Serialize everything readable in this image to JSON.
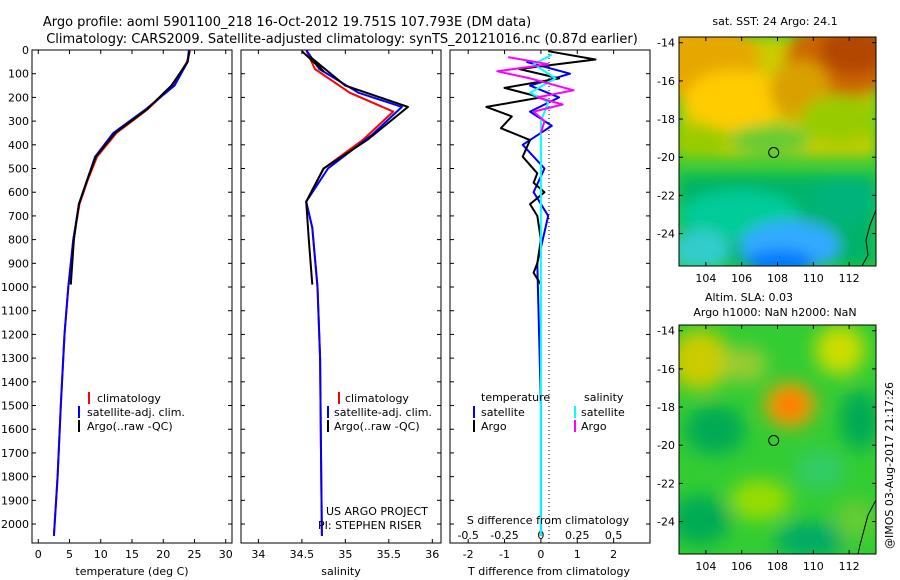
{
  "header": {
    "title_line1": "Argo profile: aoml 5901100_218 16-Oct-2012 19.751S 107.793E (DM data)",
    "title_line2": "Climatology: CARS2009. Satellite-adjusted climatology: synTS_20121016.nc (0.87d earlier)"
  },
  "colors": {
    "climatology": "#ff0000",
    "satellite": "#0000ff",
    "argo": "#000000",
    "salinity_satellite": "#00ffff",
    "salinity_argo": "#ff00ff"
  },
  "legend": {
    "climatology": "climatology",
    "satellite_adj": "satellite-adj. clim.",
    "argo_raw": "Argo(..raw -QC)",
    "temperature_head": "temperature",
    "salinity_head": "salinity",
    "satellite": "satellite",
    "argo": "Argo"
  },
  "credits": {
    "project": "US ARGO PROJECT",
    "pi": "PI: STEPHEN RISER",
    "stamp": "@IMOS 03-Aug-2017 21:17:26"
  },
  "chart_data": [
    {
      "type": "line",
      "id": "temperature",
      "xlabel": "temperature (deg C)",
      "ylabel": "",
      "xlim": [
        -1,
        31
      ],
      "ylim": [
        2080,
        0
      ],
      "xticks": [
        0,
        5,
        10,
        15,
        20,
        25,
        30
      ],
      "yticks": [
        0,
        100,
        200,
        300,
        400,
        500,
        600,
        700,
        800,
        900,
        1000,
        1100,
        1200,
        1300,
        1400,
        1500,
        1600,
        1700,
        1800,
        1900,
        2000
      ],
      "series": [
        {
          "name": "climatology",
          "color": "#ff0000",
          "x": [
            24.3,
            23.8,
            21.5,
            17.5,
            12.5,
            9.4,
            7.9,
            6.6,
            5.6,
            4.8,
            4.2,
            3.6,
            3.1,
            2.5
          ],
          "y": [
            0,
            50,
            150,
            250,
            350,
            450,
            550,
            650,
            800,
            1000,
            1200,
            1500,
            1800,
            2050
          ]
        },
        {
          "name": "satellite-adj. clim.",
          "color": "#0000ff",
          "x": [
            24.1,
            23.9,
            21.8,
            17.2,
            12.0,
            9.1,
            7.8,
            6.5,
            5.6,
            4.8,
            4.2,
            3.6,
            3.1,
            2.5
          ],
          "y": [
            0,
            50,
            150,
            250,
            350,
            450,
            550,
            650,
            800,
            1000,
            1200,
            1500,
            1800,
            2050
          ]
        },
        {
          "name": "Argo(..raw -QC)",
          "color": "#000000",
          "x": [
            24.2,
            23.9,
            21.3,
            17.4,
            12.3,
            9.2,
            7.8,
            6.5,
            5.7,
            5.2
          ],
          "y": [
            5,
            50,
            150,
            250,
            350,
            450,
            550,
            650,
            800,
            990
          ]
        }
      ]
    },
    {
      "type": "line",
      "id": "salinity",
      "xlabel": "salinity",
      "ylabel": "",
      "xlim": [
        33.8,
        36.1
      ],
      "ylim": [
        2080,
        0
      ],
      "xticks": [
        34,
        34.5,
        35,
        35.5,
        36
      ],
      "series": [
        {
          "name": "climatology",
          "color": "#ff0000",
          "x": [
            34.55,
            34.65,
            35.05,
            35.55,
            35.2,
            34.75,
            34.55,
            34.62,
            34.68,
            34.71,
            34.72,
            34.73
          ],
          "y": [
            0,
            80,
            180,
            260,
            380,
            500,
            640,
            750,
            1000,
            1300,
            1700,
            2050
          ]
        },
        {
          "name": "satellite-adj. clim.",
          "color": "#0000ff",
          "x": [
            34.55,
            34.7,
            35.15,
            35.65,
            35.3,
            34.8,
            34.55,
            34.62,
            34.68,
            34.71,
            34.72,
            34.73
          ],
          "y": [
            0,
            80,
            180,
            240,
            360,
            500,
            640,
            750,
            1000,
            1300,
            1700,
            2050
          ]
        },
        {
          "name": "Argo(..raw -QC)",
          "color": "#000000",
          "x": [
            34.5,
            34.75,
            34.6,
            35.0,
            35.72,
            35.25,
            34.75,
            34.55,
            34.58,
            34.62
          ],
          "y": [
            5,
            90,
            30,
            150,
            240,
            380,
            500,
            640,
            800,
            990
          ]
        }
      ]
    },
    {
      "type": "line",
      "id": "difference",
      "xlabel": "T difference from climatology",
      "xlabel_top": "S difference from climatology",
      "xlim": [
        -2.5,
        3
      ],
      "ylim": [
        2080,
        0
      ],
      "xticks": [
        -2,
        -1,
        0,
        1,
        2
      ],
      "xticks_top": [
        -0.5,
        -0.25,
        0,
        0.25,
        0.5
      ],
      "series": [
        {
          "name": "temperature satellite",
          "color": "#0000ff",
          "x": [
            -0.4,
            0.8,
            -0.3,
            0.5,
            -0.3,
            0.3,
            -0.5,
            0.1,
            -0.2,
            0.2,
            -0.1,
            0.0,
            0.0
          ],
          "y": [
            50,
            100,
            150,
            200,
            260,
            320,
            400,
            500,
            600,
            700,
            900,
            1500,
            2050
          ]
        },
        {
          "name": "temperature Argo",
          "color": "#000000",
          "x": [
            0.2,
            1.5,
            -0.6,
            0.5,
            -1.0,
            0.0,
            -1.5,
            -0.8,
            -1.1,
            -0.3,
            -0.5,
            -0.1,
            -0.2,
            0.1,
            -0.3,
            -0.1,
            0.0,
            -0.1,
            -0.2,
            0.0
          ],
          "y": [
            5,
            40,
            80,
            120,
            160,
            200,
            240,
            280,
            330,
            380,
            450,
            520,
            560,
            600,
            650,
            700,
            800,
            900,
            940,
            990
          ]
        },
        {
          "name": "salinity satellite",
          "color": "#00ffff",
          "x": [
            0.3,
            -0.2,
            0.4,
            -0.3,
            0.2,
            0.0,
            0.0,
            0.0
          ],
          "y": [
            20,
            60,
            120,
            180,
            220,
            300,
            600,
            2050
          ]
        },
        {
          "name": "salinity Argo",
          "color": "#ff00ff",
          "x": [
            -0.9,
            0.2,
            -1.2,
            -0.3,
            0.9,
            -0.1,
            0.6,
            -0.2,
            0.1,
            0.0
          ],
          "y": [
            30,
            60,
            90,
            120,
            170,
            200,
            230,
            260,
            300,
            350
          ]
        }
      ]
    },
    {
      "type": "heatmap",
      "id": "sst_map",
      "title": "sat. SST: 24 Argo: 24.1",
      "xlim": [
        102.5,
        113.5
      ],
      "ylim": [
        -25.7,
        -13.7
      ],
      "xticks": [
        104,
        106,
        108,
        110,
        112
      ],
      "yticks": [
        -14,
        -16,
        -18,
        -20,
        -22,
        -24
      ],
      "marker": [
        107.79,
        -19.75
      ]
    },
    {
      "type": "heatmap",
      "id": "sla_map",
      "title_line1": "Altim. SLA: 0.03",
      "title_line2": "Argo h1000: NaN h2000: NaN",
      "xlim": [
        102.5,
        113.5
      ],
      "ylim": [
        -25.7,
        -13.7
      ],
      "xticks": [
        104,
        106,
        108,
        110,
        112
      ],
      "yticks": [
        -14,
        -16,
        -18,
        -20,
        -22,
        -24
      ],
      "marker": [
        107.79,
        -19.75
      ]
    }
  ]
}
